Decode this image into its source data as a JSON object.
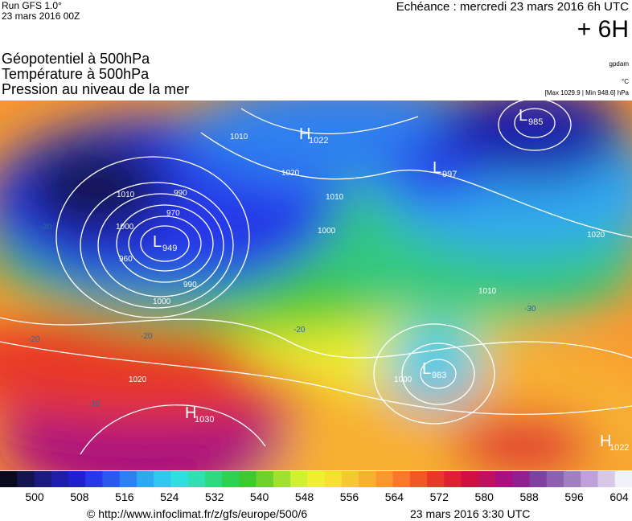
{
  "header": {
    "run": "Run GFS 1.0°",
    "run_date": "23 mars 2016 00Z",
    "echeance": "Echéance : mercredi 23 mars 2016 6h UTC",
    "offset": "+ 6H",
    "titles": [
      "Géopotentiel à 500hPa",
      "Température à 500hPa",
      "Pression au niveau de la mer"
    ],
    "unit_geopotential": "gpdam",
    "unit_temperature": "°C",
    "pressure_range": "[Max 1029.9 | Min 948.6] hPa"
  },
  "map": {
    "centers": [
      {
        "symbol": "L",
        "value": 949
      },
      {
        "symbol": "L",
        "value": 985
      },
      {
        "symbol": "L",
        "value": 997
      },
      {
        "symbol": "H",
        "value": 1022
      },
      {
        "symbol": "L",
        "value": 983
      },
      {
        "symbol": "H",
        "value": 1030
      },
      {
        "symbol": "H",
        "value": 1022
      }
    ],
    "contour_labels": [
      990,
      970,
      960,
      1000,
      990,
      1000,
      1010,
      1010,
      1020,
      1020,
      1010,
      1000,
      1010,
      1020,
      1000,
      -30,
      -20,
      -10,
      -20,
      -30,
      -20
    ]
  },
  "colorbar": {
    "colors": [
      "#0a0a1e",
      "#141450",
      "#1a1a80",
      "#1e1eaa",
      "#2020d0",
      "#2838e8",
      "#2c5af0",
      "#2e80f0",
      "#30a8f0",
      "#30c8f0",
      "#30e0e0",
      "#30e0b0",
      "#30d880",
      "#30d050",
      "#40c830",
      "#70d030",
      "#a0e030",
      "#d0f030",
      "#f0f030",
      "#f8e030",
      "#f8c830",
      "#f8b030",
      "#f89830",
      "#f87830",
      "#f05828",
      "#e83828",
      "#e02030",
      "#d01040",
      "#c01060",
      "#a81080",
      "#902090",
      "#8040a0",
      "#9060b0",
      "#a080c0",
      "#c0a0d8",
      "#d8c8e8",
      "#f0f0f8"
    ],
    "labels": [
      500,
      508,
      516,
      524,
      532,
      540,
      548,
      556,
      564,
      572,
      580,
      588,
      596,
      604
    ]
  },
  "footer": {
    "url": "© http://www.infoclimat.fr/z/gfs/europe/500/6",
    "time": "23 mars 2016  3:30 UTC"
  }
}
